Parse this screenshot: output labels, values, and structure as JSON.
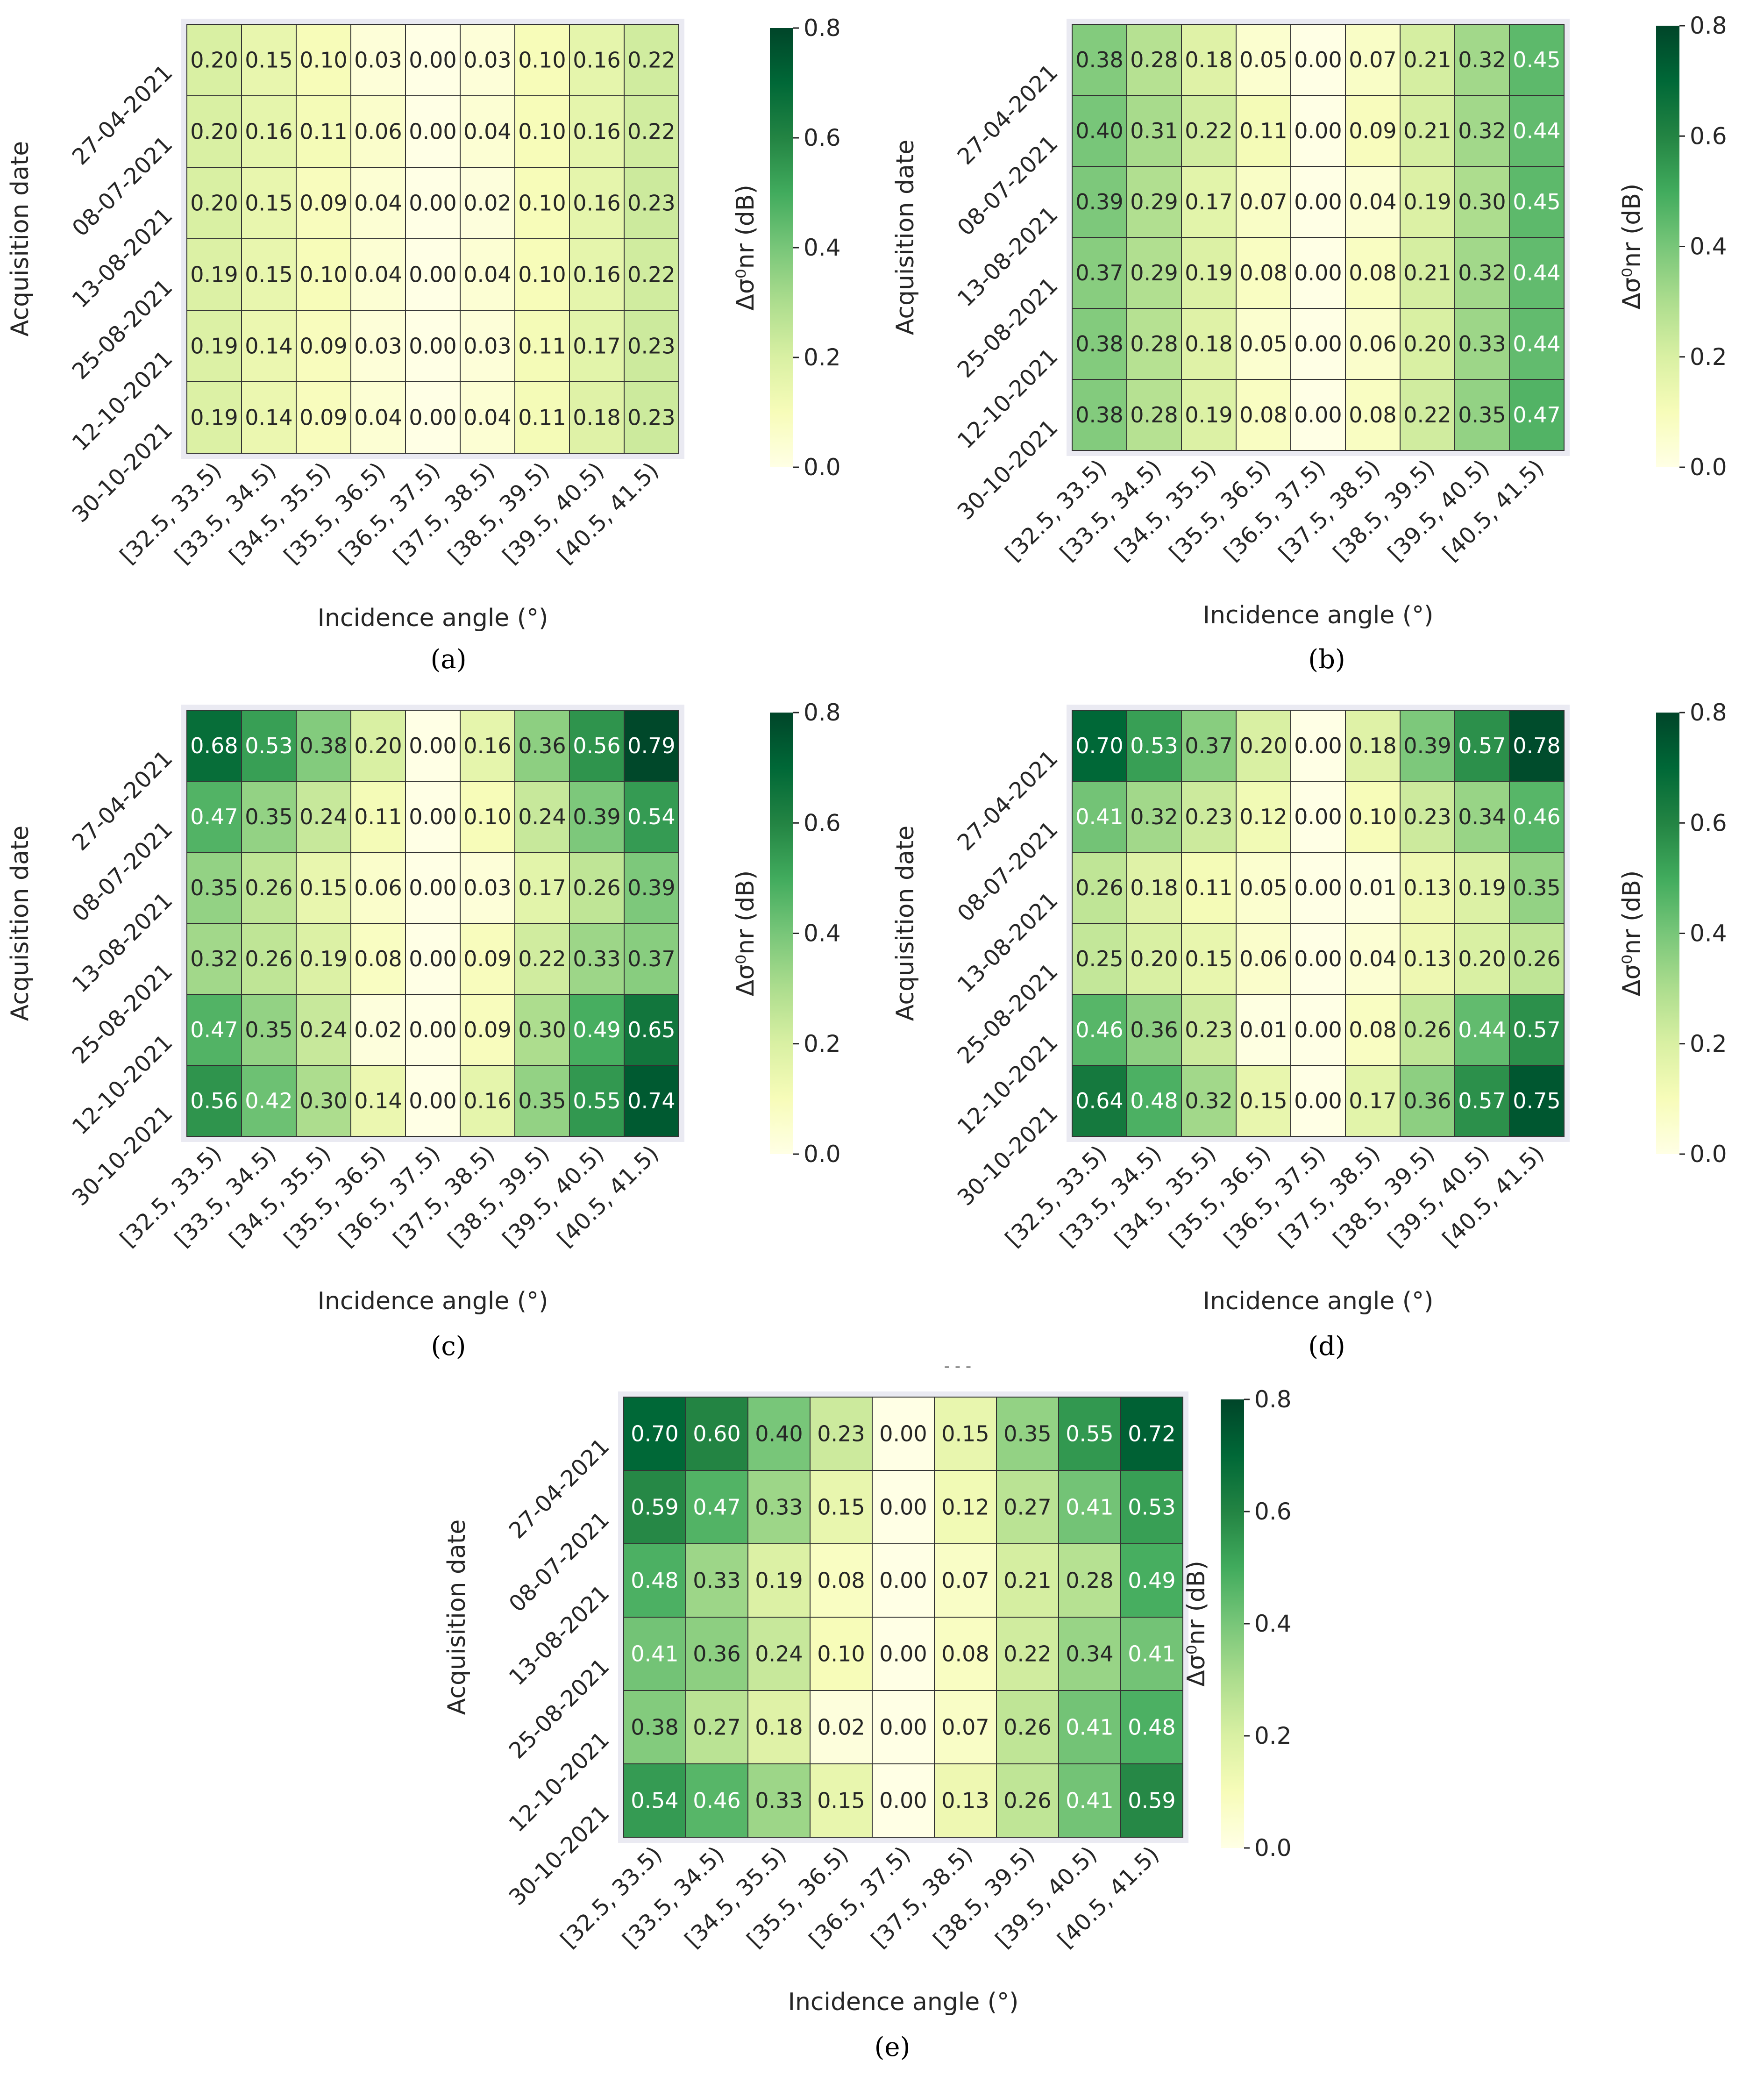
{
  "chart_data": [
    {
      "panel": "a",
      "type": "heatmap",
      "caption": "(a)",
      "xlabel": "Incidence angle (°)",
      "ylabel": "Acquisition date",
      "colorbar_label": "Δσ⁰nr (dB)",
      "colorbar_range": [
        0.0,
        0.8
      ],
      "colorbar_ticks": [
        "0.0",
        "0.2",
        "0.4",
        "0.6",
        "0.8"
      ],
      "x_categories": [
        "[32.5, 33.5)",
        "[33.5, 34.5)",
        "[34.5, 35.5)",
        "[35.5, 36.5)",
        "[36.5, 37.5)",
        "[37.5, 38.5)",
        "[38.5, 39.5)",
        "[39.5, 40.5)",
        "[40.5, 41.5)"
      ],
      "y_categories": [
        "27-04-2021",
        "08-07-2021",
        "13-08-2021",
        "25-08-2021",
        "12-10-2021",
        "30-10-2021"
      ],
      "values": [
        [
          0.2,
          0.15,
          0.1,
          0.03,
          0.0,
          0.03,
          0.1,
          0.16,
          0.22
        ],
        [
          0.2,
          0.16,
          0.11,
          0.06,
          0.0,
          0.04,
          0.1,
          0.16,
          0.22
        ],
        [
          0.2,
          0.15,
          0.09,
          0.04,
          0.0,
          0.02,
          0.1,
          0.16,
          0.23
        ],
        [
          0.19,
          0.15,
          0.1,
          0.04,
          0.0,
          0.04,
          0.1,
          0.16,
          0.22
        ],
        [
          0.19,
          0.14,
          0.09,
          0.03,
          0.0,
          0.03,
          0.11,
          0.17,
          0.23
        ],
        [
          0.19,
          0.14,
          0.09,
          0.04,
          0.0,
          0.04,
          0.11,
          0.18,
          0.23
        ]
      ]
    },
    {
      "panel": "b",
      "type": "heatmap",
      "caption": "(b)",
      "xlabel": "Incidence angle (°)",
      "ylabel": "Acquisition date",
      "colorbar_label": "Δσ⁰nr (dB)",
      "colorbar_range": [
        0.0,
        0.8
      ],
      "colorbar_ticks": [
        "0.0",
        "0.2",
        "0.4",
        "0.6",
        "0.8"
      ],
      "x_categories": [
        "[32.5, 33.5)",
        "[33.5, 34.5)",
        "[34.5, 35.5)",
        "[35.5, 36.5)",
        "[36.5, 37.5)",
        "[37.5, 38.5)",
        "[38.5, 39.5)",
        "[39.5, 40.5)",
        "[40.5, 41.5)"
      ],
      "y_categories": [
        "27-04-2021",
        "08-07-2021",
        "13-08-2021",
        "25-08-2021",
        "12-10-2021",
        "30-10-2021"
      ],
      "values": [
        [
          0.38,
          0.28,
          0.18,
          0.05,
          0.0,
          0.07,
          0.21,
          0.32,
          0.45
        ],
        [
          0.4,
          0.31,
          0.22,
          0.11,
          0.0,
          0.09,
          0.21,
          0.32,
          0.44
        ],
        [
          0.39,
          0.29,
          0.17,
          0.07,
          0.0,
          0.04,
          0.19,
          0.3,
          0.45
        ],
        [
          0.37,
          0.29,
          0.19,
          0.08,
          0.0,
          0.08,
          0.21,
          0.32,
          0.44
        ],
        [
          0.38,
          0.28,
          0.18,
          0.05,
          0.0,
          0.06,
          0.2,
          0.33,
          0.44
        ],
        [
          0.38,
          0.28,
          0.19,
          0.08,
          0.0,
          0.08,
          0.22,
          0.35,
          0.47
        ]
      ]
    },
    {
      "panel": "c",
      "type": "heatmap",
      "caption": "(c)",
      "xlabel": "Incidence angle (°)",
      "ylabel": "Acquisition date",
      "colorbar_label": "Δσ⁰nr (dB)",
      "colorbar_range": [
        0.0,
        0.8
      ],
      "colorbar_ticks": [
        "0.0",
        "0.2",
        "0.4",
        "0.6",
        "0.8"
      ],
      "x_categories": [
        "[32.5, 33.5)",
        "[33.5, 34.5)",
        "[34.5, 35.5)",
        "[35.5, 36.5)",
        "[36.5, 37.5)",
        "[37.5, 38.5)",
        "[38.5, 39.5)",
        "[39.5, 40.5)",
        "[40.5, 41.5)"
      ],
      "y_categories": [
        "27-04-2021",
        "08-07-2021",
        "13-08-2021",
        "25-08-2021",
        "12-10-2021",
        "30-10-2021"
      ],
      "values": [
        [
          0.68,
          0.53,
          0.38,
          0.2,
          0.0,
          0.16,
          0.36,
          0.56,
          0.79
        ],
        [
          0.47,
          0.35,
          0.24,
          0.11,
          0.0,
          0.1,
          0.24,
          0.39,
          0.54
        ],
        [
          0.35,
          0.26,
          0.15,
          0.06,
          0.0,
          0.03,
          0.17,
          0.26,
          0.39
        ],
        [
          0.32,
          0.26,
          0.19,
          0.08,
          0.0,
          0.09,
          0.22,
          0.33,
          0.37
        ],
        [
          0.47,
          0.35,
          0.24,
          0.02,
          0.0,
          0.09,
          0.3,
          0.49,
          0.65
        ],
        [
          0.56,
          0.42,
          0.3,
          0.14,
          0.0,
          0.16,
          0.35,
          0.55,
          0.74
        ]
      ]
    },
    {
      "panel": "d",
      "type": "heatmap",
      "caption": "(d)",
      "xlabel": "Incidence angle (°)",
      "ylabel": "Acquisition date",
      "colorbar_label": "Δσ⁰nr (dB)",
      "colorbar_range": [
        0.0,
        0.8
      ],
      "colorbar_ticks": [
        "0.0",
        "0.2",
        "0.4",
        "0.6",
        "0.8"
      ],
      "x_categories": [
        "[32.5, 33.5)",
        "[33.5, 34.5)",
        "[34.5, 35.5)",
        "[35.5, 36.5)",
        "[36.5, 37.5)",
        "[37.5, 38.5)",
        "[38.5, 39.5)",
        "[39.5, 40.5)",
        "[40.5, 41.5)"
      ],
      "y_categories": [
        "27-04-2021",
        "08-07-2021",
        "13-08-2021",
        "25-08-2021",
        "12-10-2021",
        "30-10-2021"
      ],
      "values": [
        [
          0.7,
          0.53,
          0.37,
          0.2,
          0.0,
          0.18,
          0.39,
          0.57,
          0.78
        ],
        [
          0.41,
          0.32,
          0.23,
          0.12,
          0.0,
          0.1,
          0.23,
          0.34,
          0.46
        ],
        [
          0.26,
          0.18,
          0.11,
          0.05,
          0.0,
          0.01,
          0.13,
          0.19,
          0.35
        ],
        [
          0.25,
          0.2,
          0.15,
          0.06,
          0.0,
          0.04,
          0.13,
          0.2,
          0.26
        ],
        [
          0.46,
          0.36,
          0.23,
          0.01,
          0.0,
          0.08,
          0.26,
          0.44,
          0.57
        ],
        [
          0.64,
          0.48,
          0.32,
          0.15,
          0.0,
          0.17,
          0.36,
          0.57,
          0.75
        ]
      ]
    },
    {
      "panel": "e",
      "type": "heatmap",
      "caption": "(e)",
      "xlabel": "Incidence angle (°)",
      "ylabel": "Acquisition date",
      "colorbar_label": "Δσ⁰nr (dB)",
      "colorbar_range": [
        0.0,
        0.8
      ],
      "colorbar_ticks": [
        "0.0",
        "0.2",
        "0.4",
        "0.6",
        "0.8"
      ],
      "x_categories": [
        "[32.5, 33.5)",
        "[33.5, 34.5)",
        "[34.5, 35.5)",
        "[35.5, 36.5)",
        "[36.5, 37.5)",
        "[37.5, 38.5)",
        "[38.5, 39.5)",
        "[39.5, 40.5)",
        "[40.5, 41.5)"
      ],
      "y_categories": [
        "27-04-2021",
        "08-07-2021",
        "13-08-2021",
        "25-08-2021",
        "12-10-2021",
        "30-10-2021"
      ],
      "values": [
        [
          0.7,
          0.6,
          0.4,
          0.23,
          0.0,
          0.15,
          0.35,
          0.55,
          0.72
        ],
        [
          0.59,
          0.47,
          0.33,
          0.15,
          0.0,
          0.12,
          0.27,
          0.41,
          0.53
        ],
        [
          0.48,
          0.33,
          0.19,
          0.08,
          0.0,
          0.07,
          0.21,
          0.28,
          0.49
        ],
        [
          0.41,
          0.36,
          0.24,
          0.1,
          0.0,
          0.08,
          0.22,
          0.34,
          0.41
        ],
        [
          0.38,
          0.27,
          0.18,
          0.02,
          0.0,
          0.07,
          0.26,
          0.41,
          0.48
        ],
        [
          0.54,
          0.46,
          0.33,
          0.15,
          0.0,
          0.13,
          0.26,
          0.41,
          0.59
        ]
      ]
    }
  ],
  "colormap": [
    "#ffffe5",
    "#f7fcb9",
    "#d9f0a3",
    "#addd8e",
    "#78c679",
    "#41ab5d",
    "#238443",
    "#006837",
    "#004529"
  ],
  "stray_text": "- - -"
}
